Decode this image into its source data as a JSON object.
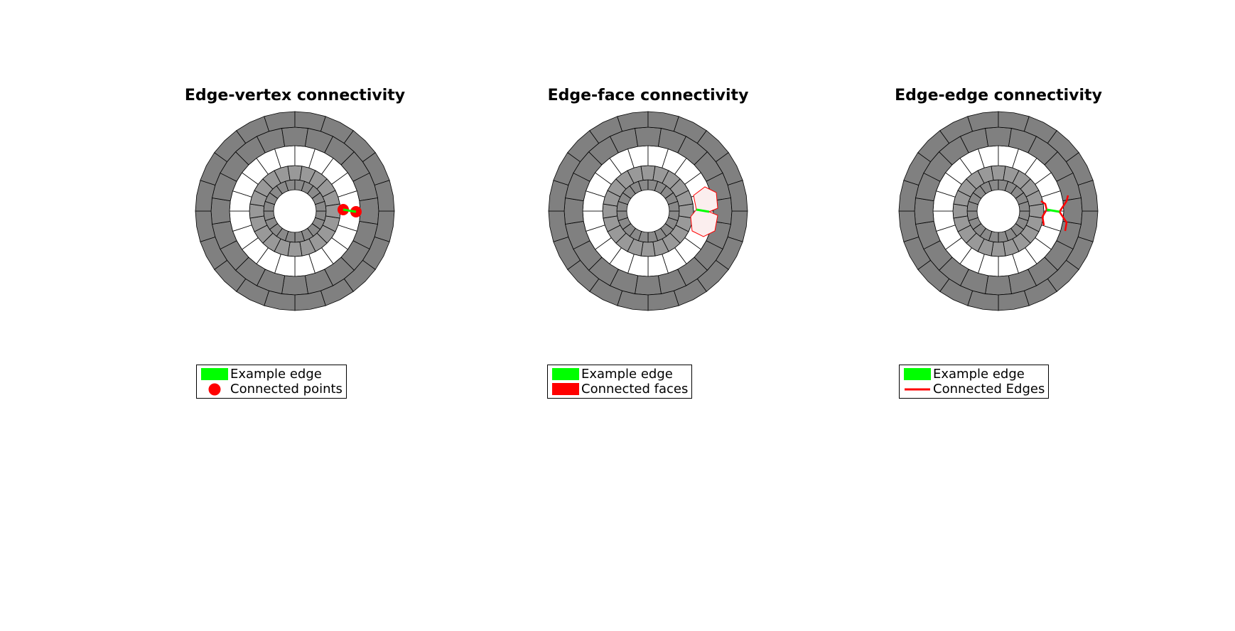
{
  "colors": {
    "outer_ring": "#808080",
    "white_ring": "#ffffff",
    "inner_ring": "#999999",
    "innermost_ring": "#8a8a8a",
    "mesh_edge": "#000000",
    "example_edge": "#00ff00",
    "connected": "#ff0000",
    "connected_face_fill": "#fbeeee"
  },
  "panels": [
    {
      "title": "Edge-vertex connectivity",
      "highlight": "points",
      "legend": [
        {
          "label": "Example edge",
          "marker": "green-patch"
        },
        {
          "label": "Connected points",
          "marker": "red-dot"
        }
      ]
    },
    {
      "title": "Edge-face connectivity",
      "highlight": "faces",
      "legend": [
        {
          "label": "Example edge",
          "marker": "green-patch"
        },
        {
          "label": "Connected faces",
          "marker": "red-patch"
        }
      ]
    },
    {
      "title": "Edge-edge connectivity",
      "highlight": "edges",
      "legend": [
        {
          "label": "Example edge",
          "marker": "green-patch"
        },
        {
          "label": "Connected Edges",
          "marker": "red-line"
        }
      ]
    }
  ]
}
